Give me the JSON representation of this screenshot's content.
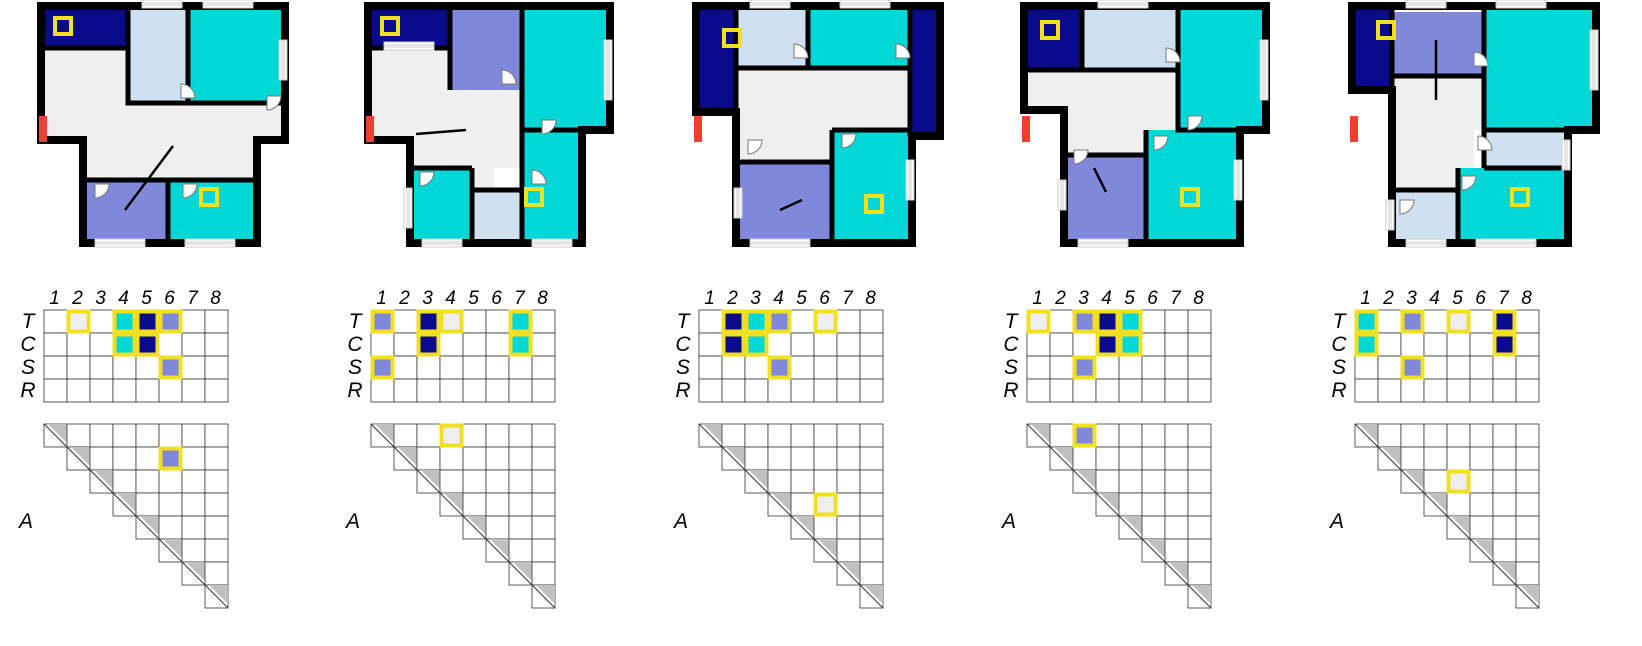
{
  "palette": {
    "navy": "#0a0a8c",
    "light_blue": "#cfe0f0",
    "periwinkle": "#8088dc",
    "cyan": "#00d8d8",
    "hall_gray": "#efefef",
    "wall": "#000000",
    "entrance_red": "#f04030",
    "highlight_yellow": "#f0e020",
    "stair_gray": "#c0c0c0",
    "window_gray": "#cccccc"
  },
  "color_keys": {
    "N": "navy",
    "L": "light_blue",
    "P": "periwinkle",
    "C": "cyan",
    "G": "hall_gray"
  },
  "column_numbers": [
    "1",
    "2",
    "3",
    "4",
    "5",
    "6",
    "7",
    "8"
  ],
  "row_labels": [
    "T",
    "C",
    "S",
    "R"
  ],
  "matrix_a_label": "A",
  "panels": [
    {
      "id": "p1",
      "rooms": [
        {
          "name": "master-bedroom-room",
          "color": "navy"
        },
        {
          "name": "bathroom-room",
          "color": "light_blue"
        },
        {
          "name": "bedroom-room",
          "color": "cyan"
        },
        {
          "name": "hall-room",
          "color": "hall_gray"
        },
        {
          "name": "living-room",
          "color": "periwinkle"
        },
        {
          "name": "kitchen-room",
          "color": "cyan"
        }
      ],
      "matrix_tcsr": [
        [
          "",
          "G",
          "",
          "C",
          "N",
          "P",
          "",
          ""
        ],
        [
          "",
          "",
          "",
          "C",
          "N",
          "",
          "",
          ""
        ],
        [
          "",
          "",
          "",
          "",
          "",
          "P",
          "",
          ""
        ],
        [
          "",
          "",
          "",
          "",
          "",
          "",
          "",
          ""
        ]
      ],
      "highlights_tcsr": [
        [
          0,
          1
        ],
        [
          0,
          3
        ],
        [
          0,
          4
        ],
        [
          0,
          5
        ],
        [
          1,
          3
        ],
        [
          1,
          4
        ],
        [
          2,
          5
        ]
      ],
      "matrix_a": [
        {
          "row": 1,
          "col": 5,
          "color": "P"
        }
      ]
    },
    {
      "id": "p2",
      "rooms": [
        {
          "name": "master-bedroom-room",
          "color": "navy"
        },
        {
          "name": "living-room",
          "color": "periwinkle"
        },
        {
          "name": "bedroom-room",
          "color": "cyan"
        },
        {
          "name": "hall-room",
          "color": "hall_gray"
        },
        {
          "name": "kitchen-room",
          "color": "cyan"
        },
        {
          "name": "bathroom-room",
          "color": "light_blue"
        },
        {
          "name": "second-bedroom-room",
          "color": "cyan"
        }
      ],
      "matrix_tcsr": [
        [
          "P",
          "",
          "N",
          "G",
          "",
          "",
          "C",
          ""
        ],
        [
          "",
          "",
          "N",
          "",
          "",
          "",
          "C",
          ""
        ],
        [
          "P",
          "",
          "",
          "",
          "",
          "",
          "",
          ""
        ],
        [
          "",
          "",
          "",
          "",
          "",
          "",
          "",
          ""
        ]
      ],
      "highlights_tcsr": [
        [
          0,
          0
        ],
        [
          0,
          2
        ],
        [
          0,
          3
        ],
        [
          0,
          6
        ],
        [
          1,
          2
        ],
        [
          1,
          6
        ],
        [
          2,
          0
        ]
      ],
      "matrix_a": [
        {
          "row": 0,
          "col": 3,
          "color": "G"
        }
      ]
    },
    {
      "id": "p3",
      "rooms": [
        {
          "name": "master-bedroom-room",
          "color": "navy"
        },
        {
          "name": "bathroom-room",
          "color": "light_blue"
        },
        {
          "name": "bedroom-room",
          "color": "cyan"
        },
        {
          "name": "second-master-room",
          "color": "navy"
        },
        {
          "name": "hall-room",
          "color": "hall_gray"
        },
        {
          "name": "living-room",
          "color": "periwinkle"
        },
        {
          "name": "kitchen-room",
          "color": "cyan"
        }
      ],
      "matrix_tcsr": [
        [
          "",
          "N",
          "C",
          "P",
          "",
          "G",
          "",
          ""
        ],
        [
          "",
          "N",
          "C",
          "",
          "",
          "",
          "",
          ""
        ],
        [
          "",
          "",
          "",
          "P",
          "",
          "",
          "",
          ""
        ],
        [
          "",
          "",
          "",
          "",
          "",
          "",
          "",
          ""
        ]
      ],
      "highlights_tcsr": [
        [
          0,
          1
        ],
        [
          0,
          2
        ],
        [
          0,
          3
        ],
        [
          0,
          5
        ],
        [
          1,
          1
        ],
        [
          1,
          2
        ],
        [
          2,
          3
        ]
      ],
      "matrix_a": [
        {
          "row": 3,
          "col": 5,
          "color": "G"
        }
      ]
    },
    {
      "id": "p4",
      "rooms": [
        {
          "name": "master-bedroom-room",
          "color": "navy"
        },
        {
          "name": "bathroom-room",
          "color": "light_blue"
        },
        {
          "name": "bedroom-room",
          "color": "cyan"
        },
        {
          "name": "hall-room",
          "color": "hall_gray"
        },
        {
          "name": "living-room",
          "color": "periwinkle"
        },
        {
          "name": "kitchen-room",
          "color": "cyan"
        }
      ],
      "matrix_tcsr": [
        [
          "G",
          "",
          "P",
          "N",
          "C",
          "",
          "",
          ""
        ],
        [
          "",
          "",
          "",
          "N",
          "C",
          "",
          "",
          ""
        ],
        [
          "",
          "",
          "P",
          "",
          "",
          "",
          "",
          ""
        ],
        [
          "",
          "",
          "",
          "",
          "",
          "",
          "",
          ""
        ]
      ],
      "highlights_tcsr": [
        [
          0,
          0
        ],
        [
          0,
          2
        ],
        [
          0,
          3
        ],
        [
          0,
          4
        ],
        [
          1,
          3
        ],
        [
          1,
          4
        ],
        [
          2,
          2
        ]
      ],
      "matrix_a": [
        {
          "row": 0,
          "col": 2,
          "color": "P"
        }
      ]
    },
    {
      "id": "p5",
      "rooms": [
        {
          "name": "master-bedroom-room",
          "color": "navy"
        },
        {
          "name": "living-room",
          "color": "periwinkle"
        },
        {
          "name": "bedroom-room",
          "color": "cyan"
        },
        {
          "name": "hall-room",
          "color": "hall_gray"
        },
        {
          "name": "bathroom-room",
          "color": "light_blue"
        },
        {
          "name": "second-bathroom-room",
          "color": "light_blue"
        },
        {
          "name": "kitchen-room",
          "color": "cyan"
        }
      ],
      "matrix_tcsr": [
        [
          "C",
          "",
          "P",
          "",
          "G",
          "",
          "N",
          ""
        ],
        [
          "C",
          "",
          "",
          "",
          "",
          "",
          "N",
          ""
        ],
        [
          "",
          "",
          "P",
          "",
          "",
          "",
          "",
          ""
        ],
        [
          "",
          "",
          "",
          "",
          "",
          "",
          "",
          ""
        ]
      ],
      "highlights_tcsr": [
        [
          0,
          0
        ],
        [
          0,
          2
        ],
        [
          0,
          4
        ],
        [
          0,
          6
        ],
        [
          1,
          0
        ],
        [
          1,
          6
        ],
        [
          2,
          2
        ]
      ],
      "matrix_a": [
        {
          "row": 2,
          "col": 4,
          "color": "G"
        }
      ]
    }
  ]
}
